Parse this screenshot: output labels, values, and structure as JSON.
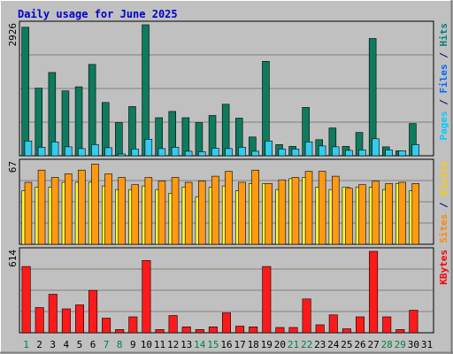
{
  "chart_data": {
    "type": "bar",
    "title": "Daily usage for June 2025",
    "x": [
      "1",
      "2",
      "3",
      "4",
      "5",
      "6",
      "7",
      "8",
      "9",
      "10",
      "11",
      "12",
      "13",
      "14",
      "15",
      "16",
      "17",
      "18",
      "19",
      "20",
      "21",
      "22",
      "23",
      "24",
      "25",
      "26",
      "27",
      "28",
      "29",
      "30",
      "31"
    ],
    "weekend_days": [
      "1",
      "7",
      "8",
      "14",
      "15",
      "21",
      "22",
      "28",
      "29"
    ],
    "panels": [
      {
        "axis_max_label": "2926",
        "ymax": 2926,
        "right_labels": [
          {
            "text": "Pages",
            "color": "#00ccff"
          },
          {
            "text": " / ",
            "color": "#000080"
          },
          {
            "text": "Files",
            "color": "#0066ff"
          },
          {
            "text": " / ",
            "color": "#000080"
          },
          {
            "text": "Hits",
            "color": "#008080"
          }
        ],
        "series": [
          {
            "name": "Hits",
            "color": "#0e7a5e",
            "values": [
              2870,
              1510,
              1860,
              1450,
              1540,
              2040,
              1190,
              740,
              1100,
              2926,
              850,
              990,
              850,
              740,
              900,
              1150,
              840,
              420,
              2110,
              250,
              210,
              1080,
              360,
              620,
              210,
              520,
              2620,
              200,
              110,
              720
            ]
          },
          {
            "name": "Pages",
            "color": "#33ccee",
            "values": [
              330,
              190,
              310,
              200,
              160,
              250,
              180,
              40,
              150,
              370,
              160,
              190,
              100,
              90,
              170,
              160,
              190,
              100,
              330,
              150,
              150,
              310,
              220,
              200,
              120,
              130,
              380,
              130,
              110,
              250
            ]
          }
        ]
      },
      {
        "axis_max_label": "67",
        "ymax": 67,
        "right_labels": [
          {
            "text": "Sites",
            "color": "#ff8800"
          },
          {
            "text": " / ",
            "color": "#000080"
          },
          {
            "text": "Visits",
            "color": "#ffcc00"
          }
        ],
        "series": [
          {
            "name": "Visits",
            "color": "#ffff33",
            "values": [
              44,
              47,
              47,
              51,
              51,
              51,
              48,
              45,
              45,
              48,
              45,
              42,
              47,
              39,
              47,
              48,
              44,
              50,
              50,
              45,
              54,
              55,
              47,
              45,
              47,
              47,
              47,
              45,
              50,
              44
            ]
          },
          {
            "name": "Sites",
            "color": "#ff9911",
            "values": [
              51,
              61,
              55,
              58,
              61,
              66,
              58,
              55,
              49,
              55,
              52,
              55,
              51,
              52,
              56,
              60,
              51,
              61,
              50,
              53,
              55,
              60,
              60,
              56,
              46,
              49,
              52,
              50,
              51,
              50
            ]
          }
        ]
      },
      {
        "axis_max_label": "614",
        "ymax": 614,
        "right_labels": [
          {
            "text": "KBytes",
            "color": "#ff0000"
          }
        ],
        "series": [
          {
            "name": "KBytes",
            "color": "#ff1a1a",
            "values": [
              500,
              190,
              290,
              180,
              210,
              320,
              110,
              25,
              120,
              545,
              25,
              130,
              45,
              25,
              45,
              150,
              50,
              45,
              500,
              40,
              40,
              255,
              60,
              135,
              30,
              120,
              614,
              120,
              25,
              170
            ]
          }
        ]
      }
    ]
  }
}
